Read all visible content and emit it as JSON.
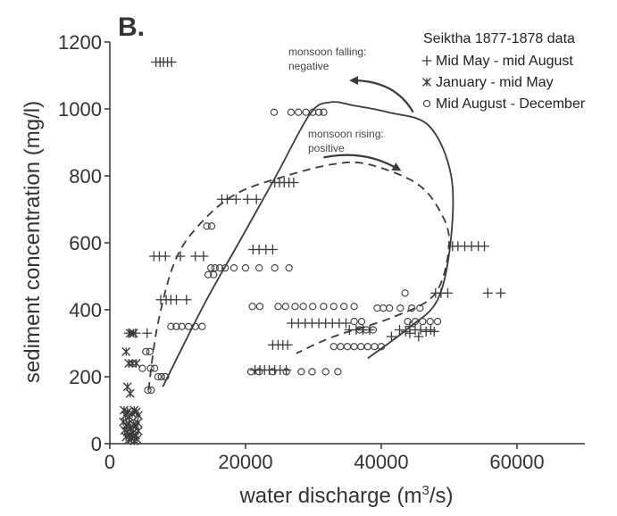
{
  "chart_data": {
    "type": "scatter",
    "panel_label": "B.",
    "title": "",
    "xlabel_main": "water discharge (m",
    "xlabel_sup": "3",
    "xlabel_tail": "/s)",
    "ylabel": "sediment concentration (mg/l)",
    "xlim": [
      0,
      70000
    ],
    "ylim": [
      0,
      1200
    ],
    "xticks": [
      0,
      20000,
      40000,
      60000
    ],
    "yticks": [
      0,
      200,
      400,
      600,
      800,
      1000,
      1200
    ],
    "legend": {
      "title": "Seiktha 1877-1878 data",
      "placement": "top-right"
    },
    "series": [
      {
        "name": "Mid May - mid August",
        "marker": "plus",
        "points": [
          [
            6800,
            1140
          ],
          [
            7400,
            1140
          ],
          [
            7900,
            1140
          ],
          [
            8500,
            1140
          ],
          [
            9100,
            1140
          ],
          [
            16500,
            730
          ],
          [
            17300,
            730
          ],
          [
            18600,
            730
          ],
          [
            20300,
            730
          ],
          [
            21600,
            730
          ],
          [
            24300,
            780
          ],
          [
            25000,
            780
          ],
          [
            25700,
            780
          ],
          [
            26400,
            780
          ],
          [
            27100,
            780
          ],
          [
            21100,
            580
          ],
          [
            22000,
            580
          ],
          [
            23000,
            580
          ],
          [
            24000,
            580
          ],
          [
            6500,
            560
          ],
          [
            7300,
            560
          ],
          [
            8200,
            560
          ],
          [
            10400,
            560
          ],
          [
            12600,
            560
          ],
          [
            13800,
            560
          ],
          [
            7500,
            430
          ],
          [
            8300,
            430
          ],
          [
            9000,
            430
          ],
          [
            9800,
            430
          ],
          [
            11300,
            430
          ],
          [
            2800,
            330
          ],
          [
            3800,
            330
          ],
          [
            5500,
            330
          ],
          [
            24000,
            295
          ],
          [
            24800,
            295
          ],
          [
            25500,
            295
          ],
          [
            26200,
            295
          ],
          [
            21400,
            220
          ],
          [
            22100,
            220
          ],
          [
            22800,
            220
          ],
          [
            23500,
            220
          ],
          [
            24300,
            220
          ],
          [
            25100,
            220
          ],
          [
            26000,
            220
          ],
          [
            26800,
            360
          ],
          [
            27800,
            360
          ],
          [
            28800,
            360
          ],
          [
            29800,
            360
          ],
          [
            30800,
            360
          ],
          [
            31800,
            360
          ],
          [
            32800,
            360
          ],
          [
            33800,
            360
          ],
          [
            34800,
            360
          ],
          [
            35300,
            340
          ],
          [
            36300,
            340
          ],
          [
            37300,
            340
          ],
          [
            38300,
            340
          ],
          [
            42700,
            340
          ],
          [
            45800,
            340
          ],
          [
            47300,
            340
          ],
          [
            43600,
            335
          ],
          [
            47800,
            335
          ],
          [
            41500,
            320
          ],
          [
            45500,
            320
          ],
          [
            46600,
            335
          ],
          [
            44200,
            350
          ],
          [
            45000,
            340
          ],
          [
            44200,
            330
          ],
          [
            48000,
            450
          ],
          [
            48800,
            450
          ],
          [
            49800,
            450
          ],
          [
            55700,
            450
          ],
          [
            57600,
            450
          ],
          [
            50500,
            590
          ],
          [
            51300,
            590
          ],
          [
            52300,
            590
          ],
          [
            53300,
            590
          ],
          [
            54300,
            590
          ],
          [
            55200,
            590
          ]
        ]
      },
      {
        "name": "January - mid May",
        "marker": "asterisk",
        "points": [
          [
            3000,
            330
          ],
          [
            3500,
            330
          ],
          [
            2400,
            275
          ],
          [
            2800,
            240
          ],
          [
            3300,
            240
          ],
          [
            3900,
            240
          ],
          [
            2600,
            170
          ],
          [
            3000,
            150
          ],
          [
            2100,
            100
          ],
          [
            2300,
            85
          ],
          [
            2600,
            95
          ],
          [
            2900,
            80
          ],
          [
            3300,
            90
          ],
          [
            3600,
            100
          ],
          [
            3900,
            95
          ],
          [
            4200,
            85
          ],
          [
            2000,
            65
          ],
          [
            2400,
            55
          ],
          [
            2800,
            60
          ],
          [
            3100,
            48
          ],
          [
            3500,
            58
          ],
          [
            3800,
            52
          ],
          [
            4100,
            62
          ],
          [
            2200,
            40
          ],
          [
            2600,
            35
          ],
          [
            3000,
            28
          ],
          [
            3400,
            32
          ],
          [
            3800,
            25
          ],
          [
            4200,
            38
          ],
          [
            2400,
            20
          ],
          [
            2800,
            12
          ],
          [
            3200,
            15
          ],
          [
            3600,
            8
          ],
          [
            4000,
            14
          ]
        ]
      },
      {
        "name": "Mid August - December",
        "marker": "circle",
        "points": [
          [
            24200,
            990
          ],
          [
            26700,
            990
          ],
          [
            27800,
            990
          ],
          [
            28900,
            990
          ],
          [
            29900,
            990
          ],
          [
            30800,
            990
          ],
          [
            31500,
            990
          ],
          [
            14300,
            650
          ],
          [
            15000,
            650
          ],
          [
            14900,
            525
          ],
          [
            15500,
            525
          ],
          [
            16200,
            525
          ],
          [
            17000,
            525
          ],
          [
            18300,
            525
          ],
          [
            20000,
            525
          ],
          [
            22000,
            525
          ],
          [
            24300,
            525
          ],
          [
            26400,
            525
          ],
          [
            14500,
            505
          ],
          [
            15300,
            505
          ],
          [
            9000,
            350
          ],
          [
            9800,
            350
          ],
          [
            10600,
            350
          ],
          [
            11600,
            350
          ],
          [
            12600,
            350
          ],
          [
            13600,
            350
          ],
          [
            5300,
            275
          ],
          [
            5900,
            275
          ],
          [
            4800,
            225
          ],
          [
            6000,
            225
          ],
          [
            6600,
            225
          ],
          [
            5600,
            160
          ],
          [
            6100,
            160
          ],
          [
            7100,
            200
          ],
          [
            7600,
            200
          ],
          [
            8200,
            200
          ],
          [
            21000,
            410
          ],
          [
            22100,
            410
          ],
          [
            24800,
            410
          ],
          [
            25900,
            410
          ],
          [
            27300,
            410
          ],
          [
            28500,
            410
          ],
          [
            29900,
            410
          ],
          [
            31500,
            410
          ],
          [
            33000,
            410
          ],
          [
            34500,
            410
          ],
          [
            36000,
            410
          ],
          [
            39400,
            405
          ],
          [
            40300,
            405
          ],
          [
            41200,
            405
          ],
          [
            42800,
            405
          ],
          [
            44500,
            405
          ],
          [
            45700,
            405
          ],
          [
            43500,
            450
          ],
          [
            36000,
            365
          ],
          [
            37100,
            365
          ],
          [
            43900,
            365
          ],
          [
            45000,
            365
          ],
          [
            46100,
            365
          ],
          [
            47200,
            365
          ],
          [
            48300,
            365
          ],
          [
            33000,
            290
          ],
          [
            34000,
            290
          ],
          [
            35000,
            290
          ],
          [
            36000,
            290
          ],
          [
            37000,
            290
          ],
          [
            38000,
            290
          ],
          [
            39000,
            290
          ],
          [
            40000,
            290
          ],
          [
            36800,
            340
          ],
          [
            37800,
            340
          ],
          [
            38800,
            340
          ],
          [
            20800,
            215
          ],
          [
            22000,
            215
          ],
          [
            24000,
            215
          ],
          [
            26000,
            215
          ],
          [
            28200,
            215
          ],
          [
            29800,
            215
          ],
          [
            31800,
            215
          ],
          [
            33600,
            215
          ]
        ]
      }
    ],
    "annotations": [
      {
        "id": "falling",
        "lines": [
          "monsoon falling:",
          "negative"
        ]
      },
      {
        "id": "rising",
        "lines": [
          "monsoon rising:",
          "positive"
        ]
      }
    ]
  }
}
